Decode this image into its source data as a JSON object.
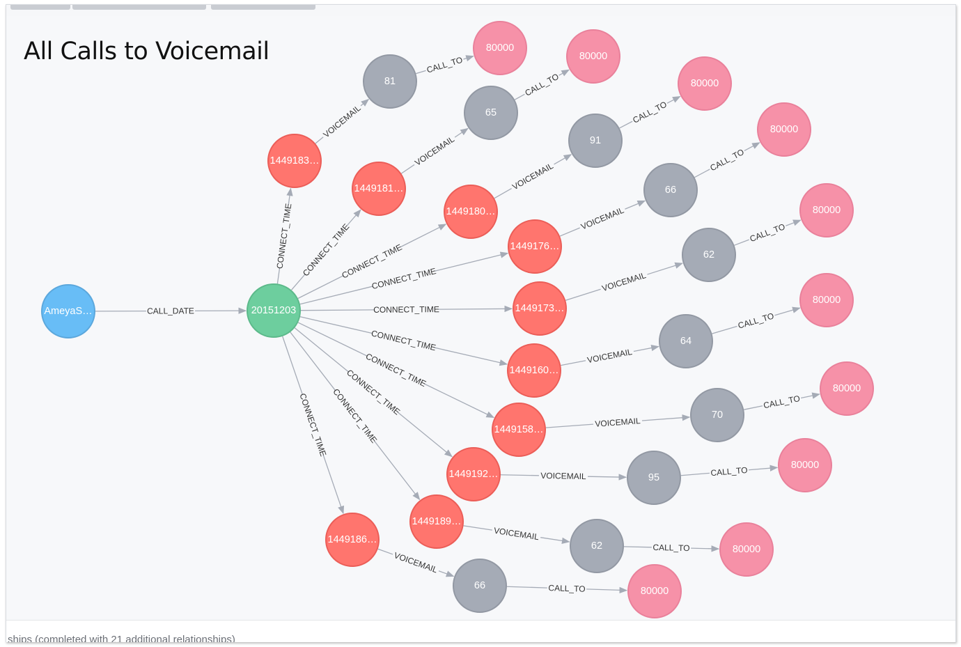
{
  "title": "All Calls to Voicemail",
  "status_text": "ships (completed with 21 additional relationships)",
  "colors": {
    "person": "#68bdf6",
    "date": "#6dce9e",
    "call": "#ff756e",
    "voicemail": "#a5abb6",
    "number": "#f691a8",
    "edge": "#a5abb6"
  },
  "graph": {
    "nodes": [
      {
        "id": "person",
        "label": "AmeyaS…",
        "type": "person"
      },
      {
        "id": "date",
        "label": "20151203",
        "type": "date"
      },
      {
        "id": "c1",
        "label": "1449183…",
        "type": "call"
      },
      {
        "id": "c2",
        "label": "1449181…",
        "type": "call"
      },
      {
        "id": "c3",
        "label": "1449180…",
        "type": "call"
      },
      {
        "id": "c4",
        "label": "1449176…",
        "type": "call"
      },
      {
        "id": "c5",
        "label": "1449173…",
        "type": "call"
      },
      {
        "id": "c6",
        "label": "1449160…",
        "type": "call"
      },
      {
        "id": "c7",
        "label": "1449158…",
        "type": "call"
      },
      {
        "id": "c8",
        "label": "1449192…",
        "type": "call"
      },
      {
        "id": "c9",
        "label": "1449189…",
        "type": "call"
      },
      {
        "id": "c10",
        "label": "1449186…",
        "type": "call"
      },
      {
        "id": "v1",
        "label": "81",
        "type": "voicemail"
      },
      {
        "id": "v2",
        "label": "65",
        "type": "voicemail"
      },
      {
        "id": "v3",
        "label": "91",
        "type": "voicemail"
      },
      {
        "id": "v4",
        "label": "66",
        "type": "voicemail"
      },
      {
        "id": "v5",
        "label": "62",
        "type": "voicemail"
      },
      {
        "id": "v6",
        "label": "64",
        "type": "voicemail"
      },
      {
        "id": "v7",
        "label": "70",
        "type": "voicemail"
      },
      {
        "id": "v8",
        "label": "95",
        "type": "voicemail"
      },
      {
        "id": "v9",
        "label": "62",
        "type": "voicemail"
      },
      {
        "id": "v10",
        "label": "66",
        "type": "voicemail"
      },
      {
        "id": "n1",
        "label": "80000",
        "type": "number"
      },
      {
        "id": "n2",
        "label": "80000",
        "type": "number"
      },
      {
        "id": "n3",
        "label": "80000",
        "type": "number"
      },
      {
        "id": "n4",
        "label": "80000",
        "type": "number"
      },
      {
        "id": "n5",
        "label": "80000",
        "type": "number"
      },
      {
        "id": "n6",
        "label": "80000",
        "type": "number"
      },
      {
        "id": "n7",
        "label": "80000",
        "type": "number"
      },
      {
        "id": "n8",
        "label": "80000",
        "type": "number"
      },
      {
        "id": "n9",
        "label": "80000",
        "type": "number"
      },
      {
        "id": "n10",
        "label": "80000",
        "type": "number"
      }
    ],
    "edges": [
      {
        "from": "person",
        "to": "date",
        "label": "CALL_DATE"
      },
      {
        "from": "date",
        "to": "c1",
        "label": "CONNECT_TIME"
      },
      {
        "from": "date",
        "to": "c2",
        "label": "CONNECT_TIME"
      },
      {
        "from": "date",
        "to": "c3",
        "label": "CONNECT_TIME"
      },
      {
        "from": "date",
        "to": "c4",
        "label": "CONNECT_TIME"
      },
      {
        "from": "date",
        "to": "c5",
        "label": "CONNECT_TIME"
      },
      {
        "from": "date",
        "to": "c6",
        "label": "CONNECT_TIME"
      },
      {
        "from": "date",
        "to": "c7",
        "label": "CONNECT_TIME"
      },
      {
        "from": "date",
        "to": "c8",
        "label": "CONNECT_TIME"
      },
      {
        "from": "date",
        "to": "c9",
        "label": "CONNECT_TIME"
      },
      {
        "from": "date",
        "to": "c10",
        "label": "CONNECT_TIME"
      },
      {
        "from": "c1",
        "to": "v1",
        "label": "VOICEMAIL"
      },
      {
        "from": "c2",
        "to": "v2",
        "label": "VOICEMAIL"
      },
      {
        "from": "c3",
        "to": "v3",
        "label": "VOICEMAIL"
      },
      {
        "from": "c4",
        "to": "v4",
        "label": "VOICEMAIL"
      },
      {
        "from": "c5",
        "to": "v5",
        "label": "VOICEMAIL"
      },
      {
        "from": "c6",
        "to": "v6",
        "label": "VOICEMAIL"
      },
      {
        "from": "c7",
        "to": "v7",
        "label": "VOICEMAIL"
      },
      {
        "from": "c8",
        "to": "v8",
        "label": "VOICEMAIL"
      },
      {
        "from": "c9",
        "to": "v9",
        "label": "VOICEMAIL"
      },
      {
        "from": "c10",
        "to": "v10",
        "label": "VOICEMAIL"
      },
      {
        "from": "v1",
        "to": "n1",
        "label": "CALL_TO"
      },
      {
        "from": "v2",
        "to": "n2",
        "label": "CALL_TO"
      },
      {
        "from": "v3",
        "to": "n3",
        "label": "CALL_TO"
      },
      {
        "from": "v4",
        "to": "n4",
        "label": "CALL_TO"
      },
      {
        "from": "v5",
        "to": "n5",
        "label": "CALL_TO"
      },
      {
        "from": "v6",
        "to": "n6",
        "label": "CALL_TO"
      },
      {
        "from": "v7",
        "to": "n7",
        "label": "CALL_TO"
      },
      {
        "from": "v8",
        "to": "n8",
        "label": "CALL_TO"
      },
      {
        "from": "v9",
        "to": "n9",
        "label": "CALL_TO"
      },
      {
        "from": "v10",
        "to": "n10",
        "label": "CALL_TO"
      }
    ]
  }
}
